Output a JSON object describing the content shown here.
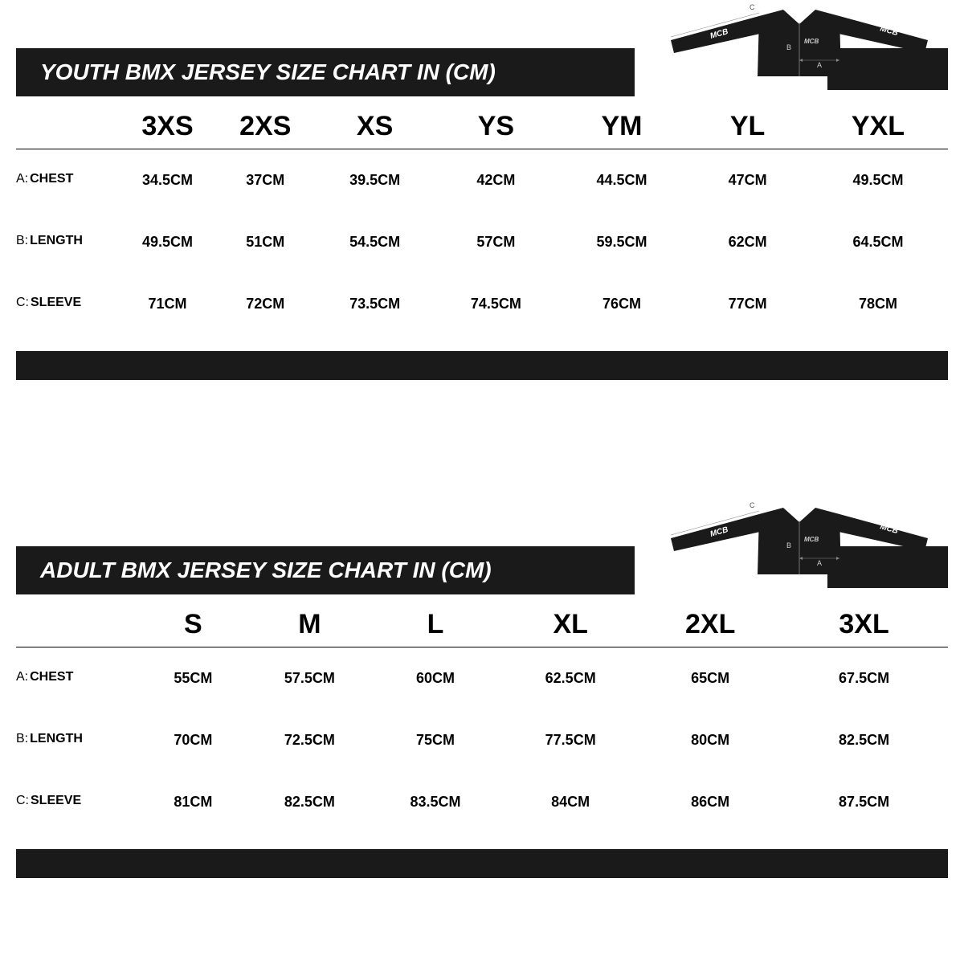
{
  "charts": [
    {
      "title": "YOUTH BMX JERSEY SIZE CHART IN (CM)",
      "title_bg": "#1a1a1a",
      "title_color": "#ffffff",
      "title_fontsize": 28,
      "header_fontsize": 34,
      "cell_fontsize": 18,
      "columns": [
        "3XS",
        "2XS",
        "XS",
        "YS",
        "YM",
        "YL",
        "YXL"
      ],
      "col_widths_pct": [
        11,
        10.5,
        10.5,
        13,
        13,
        14,
        13,
        15
      ],
      "jersey_labels": {
        "a": "A",
        "b": "B",
        "c": "C",
        "logo": "MCB"
      },
      "rows": [
        {
          "prefix": "A:",
          "label": "CHEST",
          "values": [
            "34.5CM",
            "37CM",
            "39.5CM",
            "42CM",
            "44.5CM",
            "47CM",
            "49.5CM"
          ]
        },
        {
          "prefix": "B:",
          "label": "LENGTH",
          "values": [
            "49.5CM",
            "51CM",
            "54.5CM",
            "57CM",
            "59.5CM",
            "62CM",
            "64.5CM"
          ]
        },
        {
          "prefix": "C:",
          "label": "SLEEVE",
          "values": [
            "71CM",
            "72CM",
            "73.5CM",
            "74.5CM",
            "76CM",
            "77CM",
            "78CM"
          ]
        }
      ]
    },
    {
      "title": "ADULT BMX JERSEY SIZE CHART IN (CM)",
      "title_bg": "#1a1a1a",
      "title_color": "#ffffff",
      "title_fontsize": 28,
      "header_fontsize": 34,
      "cell_fontsize": 18,
      "columns": [
        "S",
        "M",
        "L",
        "XL",
        "2XL",
        "3XL"
      ],
      "col_widths_pct": [
        13,
        12,
        13,
        14,
        15,
        15,
        18
      ],
      "jersey_labels": {
        "a": "A",
        "b": "B",
        "c": "C",
        "logo": "MCB"
      },
      "rows": [
        {
          "prefix": "A:",
          "label": "CHEST",
          "values": [
            "55CM",
            "57.5CM",
            "60CM",
            "62.5CM",
            "65CM",
            "67.5CM"
          ]
        },
        {
          "prefix": "B:",
          "label": "LENGTH",
          "values": [
            "70CM",
            "72.5CM",
            "75CM",
            "77.5CM",
            "80CM",
            "82.5CM"
          ]
        },
        {
          "prefix": "C:",
          "label": "SLEEVE",
          "values": [
            "81CM",
            "82.5CM",
            "83.5CM",
            "84CM",
            "86CM",
            "87.5CM"
          ]
        }
      ]
    }
  ],
  "layout": {
    "section_top_offsets": [
      0,
      620
    ],
    "jersey_top_offsets": [
      0,
      620
    ],
    "bg_color": "#ffffff",
    "text_color": "#000000"
  }
}
